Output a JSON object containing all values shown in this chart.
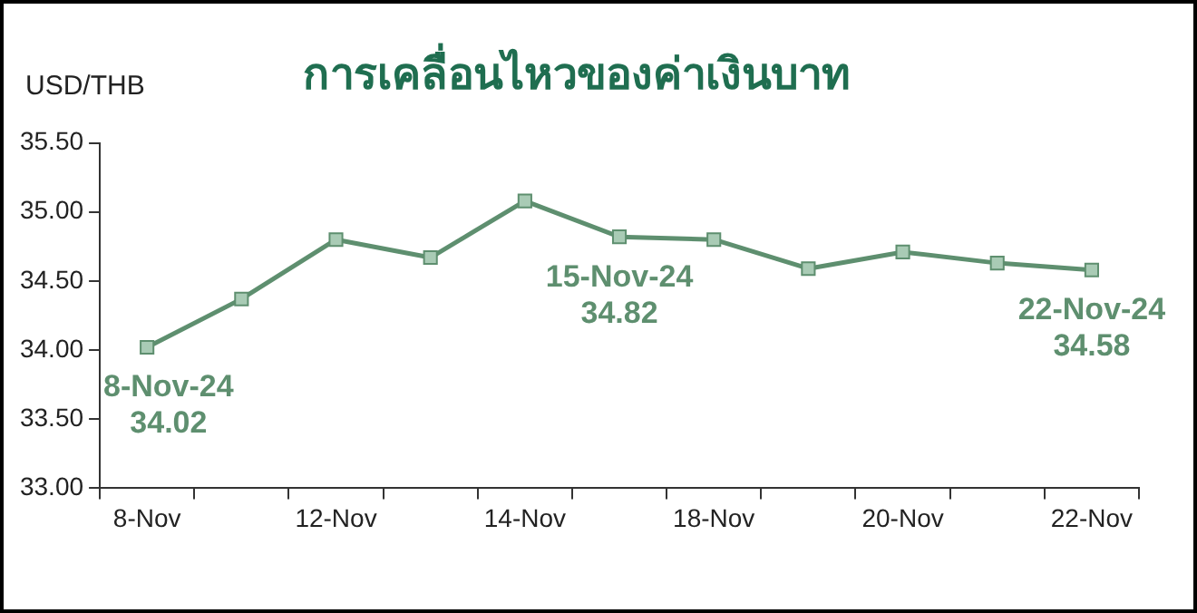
{
  "chart_data": {
    "type": "line",
    "title": "การเคลื่อนไหวของค่าเงินบาท",
    "ylabel": "USD/THB",
    "categories": [
      "8-Nov",
      null,
      "12-Nov",
      null,
      "14-Nov",
      null,
      "18-Nov",
      null,
      "20-Nov",
      null,
      "22-Nov"
    ],
    "series": [
      {
        "color": "#5e8f6f",
        "values": [
          34.02,
          34.37,
          34.8,
          34.67,
          35.08,
          34.82,
          34.8,
          34.59,
          34.71,
          34.63,
          34.58
        ]
      }
    ],
    "ylim": [
      33,
      35.5
    ],
    "yticks": [
      {
        "value": 33,
        "label": "33.00"
      },
      {
        "value": 33.5,
        "label": "33.50"
      },
      {
        "value": 34,
        "label": "34.00"
      },
      {
        "value": 34.5,
        "label": "34.50"
      },
      {
        "value": 35,
        "label": "35.00"
      },
      {
        "value": 35.5,
        "label": "35.50"
      }
    ],
    "annotations": [
      {
        "text": "8-Nov-24\n34.02",
        "x": "8-Nov",
        "y": 34.02
      },
      {
        "text": "15-Nov-24\n34.82",
        "y": 34.82
      },
      {
        "text": "22-Nov-24\n34.58",
        "x": "22-Nov",
        "y": 34.58
      }
    ],
    "marker": "square",
    "line_style": "solid",
    "grid": false,
    "legend": false
  }
}
